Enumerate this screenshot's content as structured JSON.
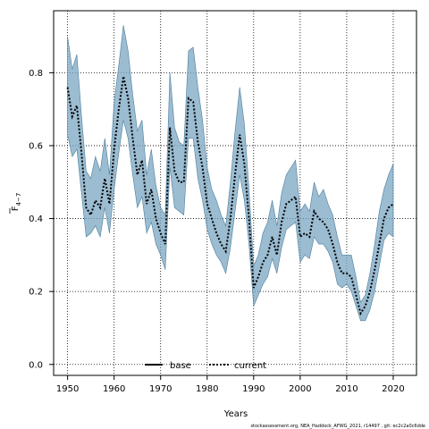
{
  "chart_data": {
    "type": "line",
    "xlabel": "Years",
    "ylabel_main": "F",
    "ylabel_sub": "4−7",
    "xlim": [
      1947,
      2025
    ],
    "ylim": [
      -0.03,
      0.97
    ],
    "xticks": [
      1950,
      1960,
      1970,
      1980,
      1990,
      2000,
      2010,
      2020
    ],
    "yticks": [
      0.0,
      0.2,
      0.4,
      0.6,
      0.8
    ],
    "ytick_labels": [
      "0.0",
      "0.2",
      "0.4",
      "0.6",
      "0.8"
    ],
    "grid": true,
    "legend_position": "bottom",
    "colors": {
      "band": "#7aa6c2",
      "band_edge": "#4d7f9e",
      "line": "#000000",
      "grid": "#000000"
    },
    "series": [
      {
        "name": "base",
        "style": "solid"
      },
      {
        "name": "current",
        "style": "dotted"
      }
    ],
    "x": [
      1950,
      1951,
      1952,
      1953,
      1954,
      1955,
      1956,
      1957,
      1958,
      1959,
      1960,
      1961,
      1962,
      1963,
      1964,
      1965,
      1966,
      1967,
      1968,
      1969,
      1970,
      1971,
      1972,
      1973,
      1974,
      1975,
      1976,
      1977,
      1978,
      1979,
      1980,
      1981,
      1982,
      1983,
      1984,
      1985,
      1986,
      1987,
      1988,
      1989,
      1990,
      1991,
      1992,
      1993,
      1994,
      1995,
      1996,
      1997,
      1998,
      1999,
      2000,
      2001,
      2002,
      2003,
      2004,
      2005,
      2006,
      2007,
      2008,
      2009,
      2010,
      2011,
      2012,
      2013,
      2014,
      2015,
      2016,
      2017,
      2018,
      2019,
      2020
    ],
    "estimate": [
      0.76,
      0.68,
      0.71,
      0.58,
      0.43,
      0.41,
      0.45,
      0.43,
      0.51,
      0.44,
      0.59,
      0.7,
      0.79,
      0.73,
      0.62,
      0.52,
      0.56,
      0.44,
      0.48,
      0.4,
      0.36,
      0.33,
      0.65,
      0.53,
      0.5,
      0.5,
      0.73,
      0.72,
      0.61,
      0.54,
      0.44,
      0.4,
      0.36,
      0.33,
      0.31,
      0.4,
      0.52,
      0.63,
      0.55,
      0.4,
      0.21,
      0.24,
      0.28,
      0.3,
      0.35,
      0.3,
      0.39,
      0.44,
      0.45,
      0.46,
      0.35,
      0.36,
      0.35,
      0.42,
      0.4,
      0.39,
      0.37,
      0.33,
      0.28,
      0.25,
      0.25,
      0.24,
      0.19,
      0.14,
      0.16,
      0.2,
      0.26,
      0.33,
      0.4,
      0.43,
      0.44
    ],
    "lower": [
      0.63,
      0.57,
      0.59,
      0.47,
      0.35,
      0.36,
      0.38,
      0.35,
      0.43,
      0.36,
      0.48,
      0.58,
      0.67,
      0.62,
      0.52,
      0.43,
      0.46,
      0.36,
      0.39,
      0.33,
      0.3,
      0.26,
      0.54,
      0.43,
      0.42,
      0.41,
      0.62,
      0.62,
      0.51,
      0.45,
      0.37,
      0.33,
      0.3,
      0.28,
      0.25,
      0.32,
      0.42,
      0.52,
      0.45,
      0.33,
      0.16,
      0.19,
      0.22,
      0.24,
      0.29,
      0.25,
      0.32,
      0.37,
      0.38,
      0.39,
      0.28,
      0.3,
      0.29,
      0.35,
      0.33,
      0.33,
      0.31,
      0.28,
      0.22,
      0.21,
      0.22,
      0.2,
      0.16,
      0.12,
      0.12,
      0.15,
      0.2,
      0.27,
      0.34,
      0.36,
      0.35
    ],
    "upper": [
      0.9,
      0.81,
      0.85,
      0.68,
      0.53,
      0.51,
      0.57,
      0.53,
      0.62,
      0.52,
      0.72,
      0.82,
      0.93,
      0.86,
      0.74,
      0.64,
      0.67,
      0.52,
      0.59,
      0.49,
      0.43,
      0.41,
      0.8,
      0.65,
      0.61,
      0.6,
      0.86,
      0.87,
      0.76,
      0.67,
      0.54,
      0.48,
      0.45,
      0.41,
      0.38,
      0.5,
      0.64,
      0.76,
      0.66,
      0.48,
      0.27,
      0.3,
      0.36,
      0.39,
      0.45,
      0.38,
      0.47,
      0.52,
      0.54,
      0.56,
      0.42,
      0.44,
      0.42,
      0.5,
      0.46,
      0.48,
      0.44,
      0.41,
      0.35,
      0.3,
      0.3,
      0.3,
      0.24,
      0.17,
      0.19,
      0.25,
      0.33,
      0.42,
      0.48,
      0.52,
      0.55
    ]
  },
  "credit": "stockassessment.org, NEA_Haddock_AFWG_2021, r14497 , git: ec2c2a0c6dde"
}
